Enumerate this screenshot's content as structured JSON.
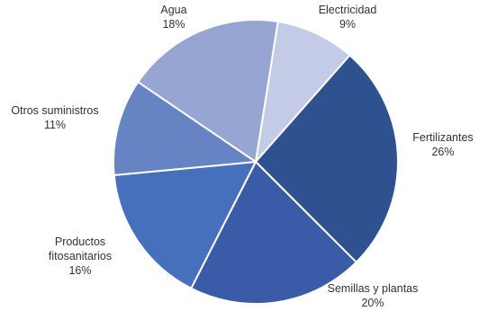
{
  "chart_data": {
    "type": "pie",
    "title": "",
    "start_angle_deg": 9,
    "direction": "clockwise",
    "slices": [
      {
        "label_lines": [
          "Electricidad"
        ],
        "value_label": "9%",
        "value": 9,
        "color": "#c3cbe6"
      },
      {
        "label_lines": [
          "Fertilizantes"
        ],
        "value_label": "26%",
        "value": 26,
        "color": "#2e5190"
      },
      {
        "label_lines": [
          "Semillas y plantas"
        ],
        "value_label": "20%",
        "value": 20,
        "color": "#3a5ba8"
      },
      {
        "label_lines": [
          "Productos",
          "fitosanitarios"
        ],
        "value_label": "16%",
        "value": 16,
        "color": "#4670bc"
      },
      {
        "label_lines": [
          "Otros suministros"
        ],
        "value_label": "11%",
        "value": 11,
        "color": "#6683c3"
      },
      {
        "label_lines": [
          "Agua"
        ],
        "value_label": "18%",
        "value": 18,
        "color": "#97a5d3"
      }
    ],
    "legend": "none"
  }
}
